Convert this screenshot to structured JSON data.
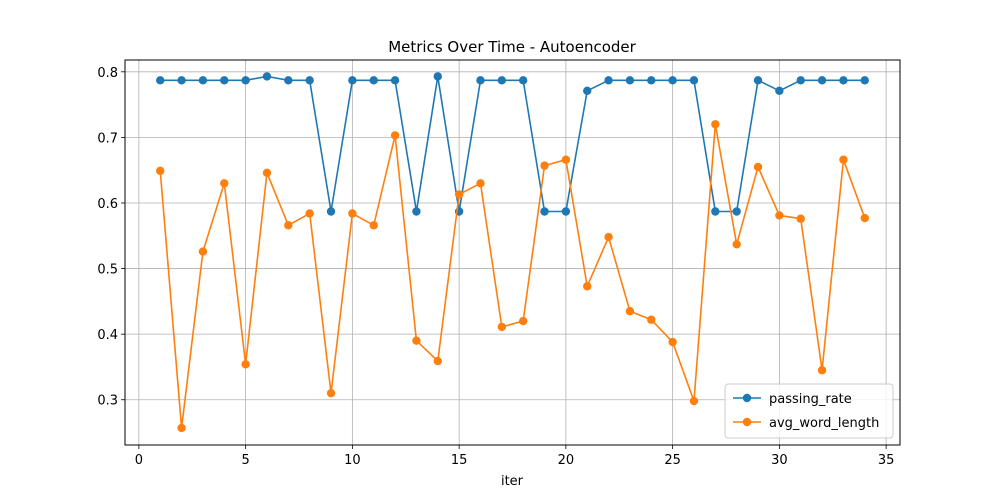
{
  "chart_data": {
    "type": "line",
    "title": "Metrics Over Time - Autoencoder",
    "xlabel": "iter",
    "ylabel": "",
    "xlim": [
      -0.65,
      35.65
    ],
    "ylim": [
      0.231,
      0.818
    ],
    "x_ticks": [
      0,
      5,
      10,
      15,
      20,
      25,
      30,
      35
    ],
    "y_ticks": [
      0.3,
      0.4,
      0.5,
      0.6,
      0.7,
      0.8
    ],
    "x_tick_labels": [
      "0",
      "5",
      "10",
      "15",
      "20",
      "25",
      "30",
      "35"
    ],
    "y_tick_labels": [
      "0.3",
      "0.4",
      "0.5",
      "0.6",
      "0.7",
      "0.8"
    ],
    "grid": true,
    "legend_position": "lower-right",
    "x": [
      1,
      2,
      3,
      4,
      5,
      6,
      7,
      8,
      9,
      10,
      11,
      12,
      13,
      14,
      15,
      16,
      17,
      18,
      19,
      20,
      21,
      22,
      23,
      24,
      25,
      26,
      27,
      28,
      29,
      30,
      31,
      32,
      33,
      34
    ],
    "series": [
      {
        "name": "passing_rate",
        "color": "#1f77b4",
        "values": [
          0.787,
          0.787,
          0.787,
          0.787,
          0.787,
          0.793,
          0.787,
          0.787,
          0.587,
          0.787,
          0.787,
          0.787,
          0.587,
          0.793,
          0.587,
          0.787,
          0.787,
          0.787,
          0.587,
          0.587,
          0.771,
          0.787,
          0.787,
          0.787,
          0.787,
          0.787,
          0.587,
          0.587,
          0.787,
          0.771,
          0.787,
          0.787,
          0.787,
          0.787
        ]
      },
      {
        "name": "avg_word_length",
        "color": "#ff7f0e",
        "values": [
          0.649,
          0.257,
          0.526,
          0.63,
          0.354,
          0.646,
          0.566,
          0.584,
          0.31,
          0.584,
          0.566,
          0.703,
          0.39,
          0.359,
          0.613,
          0.63,
          0.411,
          0.42,
          0.657,
          0.666,
          0.473,
          0.548,
          0.435,
          0.422,
          0.388,
          0.298,
          0.72,
          0.537,
          0.655,
          0.581,
          0.576,
          0.345,
          0.666,
          0.577
        ]
      }
    ]
  }
}
